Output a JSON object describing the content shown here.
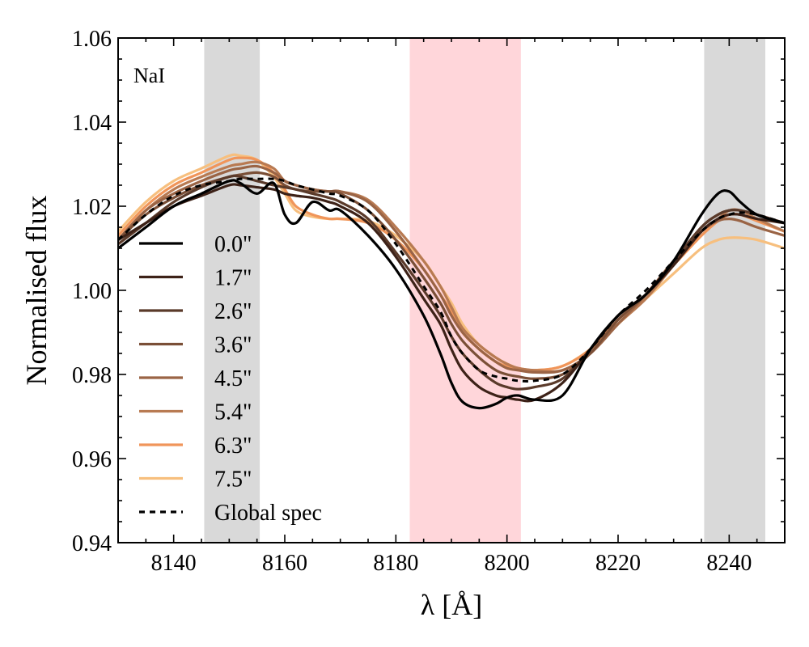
{
  "chart_data": {
    "type": "line",
    "title": "",
    "annotation": "NaI",
    "xlabel": "λ [Å]",
    "ylabel": "Normalised flux",
    "xlim": [
      8130,
      8250
    ],
    "ylim": [
      0.94,
      1.06
    ],
    "x_ticks": [
      "8140",
      "8160",
      "8180",
      "8200",
      "8220",
      "8240"
    ],
    "y_ticks": [
      "0.94",
      "0.96",
      "0.98",
      "1.00",
      "1.02",
      "1.04",
      "1.06"
    ],
    "grid": false,
    "legend_position": "left",
    "bands": [
      {
        "name": "blue-continuum",
        "from": 8145.5,
        "to": 8155.5,
        "color": "#d9d9d9"
      },
      {
        "name": "feature",
        "from": 8182.5,
        "to": 8202.5,
        "color": "#ffd6da"
      },
      {
        "name": "red-continuum",
        "from": 8235.5,
        "to": 8246.5,
        "color": "#d9d9d9"
      }
    ],
    "x": [
      8130,
      8135,
      8140,
      8145,
      8150,
      8152,
      8155,
      8158,
      8160,
      8162,
      8165,
      8168,
      8170,
      8175,
      8180,
      8185,
      8188,
      8190,
      8192,
      8195,
      8198,
      8200,
      8202,
      8205,
      8210,
      8215,
      8220,
      8225,
      8230,
      8235,
      8238,
      8240,
      8242,
      8245,
      8250
    ],
    "series": [
      {
        "name": "0.0\"",
        "color": "#000000",
        "dashed": false,
        "values": [
          1.01,
          1.015,
          1.02,
          1.023,
          1.026,
          1.0255,
          1.023,
          1.0255,
          1.018,
          1.016,
          1.021,
          1.019,
          1.019,
          1.013,
          1.005,
          0.994,
          0.985,
          0.978,
          0.9735,
          0.972,
          0.973,
          0.9745,
          0.975,
          0.974,
          0.975,
          0.986,
          0.994,
          0.999,
          1.007,
          1.018,
          1.023,
          1.0235,
          1.021,
          1.018,
          1.016
        ]
      },
      {
        "name": "1.7\"",
        "color": "#3d2218",
        "dashed": false,
        "values": [
          1.012,
          1.016,
          1.02,
          1.0225,
          1.025,
          1.025,
          1.0245,
          1.024,
          1.023,
          1.0225,
          1.022,
          1.021,
          1.02,
          1.016,
          1.008,
          0.998,
          0.992,
          0.986,
          0.981,
          0.977,
          0.975,
          0.9745,
          0.974,
          0.974,
          0.978,
          0.986,
          0.994,
          0.999,
          1.006,
          1.014,
          1.017,
          1.018,
          1.018,
          1.017,
          1.016
        ]
      },
      {
        "name": "2.6\"",
        "color": "#5a3a2a",
        "dashed": false,
        "values": [
          1.011,
          1.016,
          1.021,
          1.0245,
          1.027,
          1.027,
          1.026,
          1.025,
          1.0245,
          1.024,
          1.023,
          1.022,
          1.021,
          1.017,
          1.009,
          1.0,
          0.994,
          0.989,
          0.985,
          0.981,
          0.978,
          0.977,
          0.9765,
          0.977,
          0.979,
          0.986,
          0.994,
          0.999,
          1.007,
          1.015,
          1.018,
          1.019,
          1.019,
          1.018,
          1.016
        ]
      },
      {
        "name": "3.6\"",
        "color": "#7a4f37",
        "dashed": false,
        "values": [
          1.012,
          1.018,
          1.022,
          1.025,
          1.027,
          1.0275,
          1.028,
          1.027,
          1.025,
          1.024,
          1.0235,
          1.0235,
          1.023,
          1.019,
          1.012,
          1.003,
          0.997,
          0.992,
          0.988,
          0.984,
          0.981,
          0.98,
          0.9795,
          0.979,
          0.98,
          0.985,
          0.993,
          0.999,
          1.007,
          1.015,
          1.018,
          1.019,
          1.019,
          1.018,
          1.016
        ]
      },
      {
        "name": "4.5\"",
        "color": "#9a6445",
        "dashed": false,
        "values": [
          1.012,
          1.019,
          1.023,
          1.026,
          1.0285,
          1.029,
          1.0295,
          1.028,
          1.026,
          1.025,
          1.024,
          1.0235,
          1.0235,
          1.021,
          1.014,
          1.005,
          0.999,
          0.994,
          0.99,
          0.986,
          0.983,
          0.9815,
          0.981,
          0.9805,
          0.981,
          0.985,
          0.992,
          0.999,
          1.007,
          1.014,
          1.0165,
          1.017,
          1.0165,
          1.015,
          1.013
        ]
      },
      {
        "name": "5.4\"",
        "color": "#b87a52",
        "dashed": false,
        "values": [
          1.012,
          1.019,
          1.024,
          1.027,
          1.0295,
          1.03,
          1.0305,
          1.029,
          1.026,
          1.025,
          1.024,
          1.0235,
          1.0235,
          1.0215,
          1.015,
          1.007,
          1.001,
          0.996,
          0.991,
          0.987,
          0.984,
          0.9825,
          0.9815,
          0.981,
          0.981,
          0.985,
          0.992,
          0.998,
          1.006,
          1.014,
          1.017,
          1.019,
          1.019,
          1.017,
          1.014
        ]
      },
      {
        "name": "6.3\"",
        "color": "#f0955a",
        "dashed": false,
        "values": [
          1.013,
          1.02,
          1.025,
          1.028,
          1.031,
          1.0315,
          1.031,
          1.028,
          1.024,
          1.02,
          1.018,
          1.017,
          1.017,
          1.016,
          1.012,
          1.005,
          0.999,
          0.995,
          0.99,
          0.986,
          0.983,
          0.982,
          0.9815,
          0.981,
          0.982,
          0.986,
          0.993,
          0.999,
          1.006,
          1.013,
          1.0165,
          1.018,
          1.018,
          1.0165,
          1.014
        ]
      },
      {
        "name": "7.5\"",
        "color": "#f7bf7e",
        "dashed": false,
        "values": [
          1.014,
          1.021,
          1.026,
          1.029,
          1.032,
          1.032,
          1.031,
          1.027,
          1.023,
          1.019,
          1.0175,
          1.017,
          1.017,
          1.0165,
          1.013,
          1.007,
          1.001,
          0.997,
          0.992,
          0.987,
          0.984,
          0.9825,
          0.9815,
          0.981,
          0.982,
          0.986,
          0.992,
          0.998,
          1.004,
          1.01,
          1.012,
          1.0125,
          1.0125,
          1.012,
          1.01
        ]
      },
      {
        "name": "Global spec",
        "color": "#000000",
        "dashed": true,
        "values": [
          1.012,
          1.018,
          1.0225,
          1.025,
          1.026,
          1.0265,
          1.0265,
          1.0265,
          1.026,
          1.025,
          1.024,
          1.023,
          1.0225,
          1.019,
          1.011,
          1.001,
          0.995,
          0.989,
          0.985,
          0.981,
          0.9795,
          0.979,
          0.9785,
          0.9785,
          0.98,
          0.986,
          0.994,
          1.0,
          1.007,
          1.014,
          1.017,
          1.018,
          1.0185,
          1.018,
          1.016
        ]
      }
    ]
  }
}
